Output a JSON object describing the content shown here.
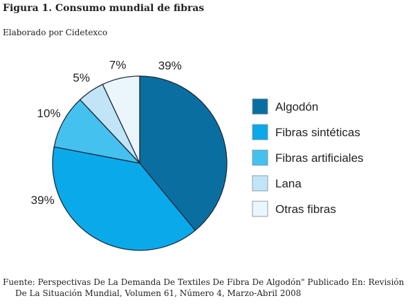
{
  "title": "Figura 1. Consumo mundial de fibras",
  "subtitle": "Elaborado por Cidetexco",
  "source": {
    "line1": "Fuente: Perspectivas De La Demanda De Textiles De Fibra De Algodón\" Publicado En: Revisión",
    "line2": "De La Situación Mundial, Volumen 61, Número 4, Marzo-Abril 2008"
  },
  "chart_data": {
    "type": "pie",
    "title": "Figura 1. Consumo mundial de fibras",
    "start": "12 o'clock",
    "direction": "clockwise",
    "legend_position": "right",
    "slices": [
      {
        "name": "Algodón",
        "value": 39,
        "label": "39%",
        "color": "#0a6fa0"
      },
      {
        "name": "Fibras sintéticas",
        "value": 39,
        "label": "39%",
        "color": "#0aa9ea"
      },
      {
        "name": "Fibras artificiales",
        "value": 10,
        "label": "10%",
        "color": "#45c1ef"
      },
      {
        "name": "Lana",
        "value": 5,
        "label": "5%",
        "color": "#c2e4f7"
      },
      {
        "name": "Otras fibras",
        "value": 7,
        "label": "7%",
        "color": "#eaf5fc"
      }
    ]
  }
}
